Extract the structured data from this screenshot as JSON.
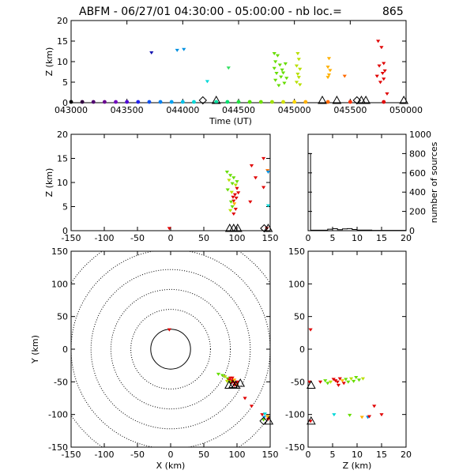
{
  "header": {
    "title": "ABFM - 06/27/01 04:30:00 - 05:00:00 - nb loc.=",
    "count": "865"
  },
  "chart_data": [
    {
      "id": "time-height",
      "type": "scatter",
      "xlabel": "Time (UT)",
      "ylabel": "Z (km)",
      "xlim": [
        0,
        30
      ],
      "ylim": [
        0,
        20
      ],
      "xtick_labels": [
        "043000",
        "043500",
        "044000",
        "044500",
        "045000",
        "045500",
        "050000"
      ],
      "yticks": [
        0,
        5,
        10,
        15,
        20
      ],
      "points": [
        {
          "x": 7.2,
          "y": 12.2,
          "c": "#1010b0"
        },
        {
          "x": 9.5,
          "y": 12.8,
          "c": "#0090e0"
        },
        {
          "x": 10.1,
          "y": 13.0,
          "c": "#0090e0"
        },
        {
          "x": 12.2,
          "y": 5.2,
          "c": "#00d8d8"
        },
        {
          "x": 14.1,
          "y": 8.5,
          "c": "#30e060"
        },
        {
          "x": 18.2,
          "y": 12.0,
          "c": "#66dd00"
        },
        {
          "x": 18.5,
          "y": 11.5,
          "c": "#66dd00"
        },
        {
          "x": 18.3,
          "y": 10.0,
          "c": "#66dd00"
        },
        {
          "x": 18.7,
          "y": 9.2,
          "c": "#66dd00"
        },
        {
          "x": 18.2,
          "y": 8.4,
          "c": "#66dd00"
        },
        {
          "x": 18.9,
          "y": 8.0,
          "c": "#66dd00"
        },
        {
          "x": 18.4,
          "y": 7.2,
          "c": "#66dd00"
        },
        {
          "x": 18.8,
          "y": 6.3,
          "c": "#66dd00"
        },
        {
          "x": 18.3,
          "y": 5.5,
          "c": "#66dd00"
        },
        {
          "x": 18.6,
          "y": 4.2,
          "c": "#66dd00"
        },
        {
          "x": 19.2,
          "y": 9.5,
          "c": "#66dd00"
        },
        {
          "x": 19.0,
          "y": 7.3,
          "c": "#66dd00"
        },
        {
          "x": 19.3,
          "y": 6.0,
          "c": "#66dd00"
        },
        {
          "x": 19.1,
          "y": 4.8,
          "c": "#66dd00"
        },
        {
          "x": 20.3,
          "y": 12.0,
          "c": "#b8e000"
        },
        {
          "x": 20.4,
          "y": 10.6,
          "c": "#b8e000"
        },
        {
          "x": 20.2,
          "y": 9.0,
          "c": "#b8e000"
        },
        {
          "x": 20.5,
          "y": 8.2,
          "c": "#b8e000"
        },
        {
          "x": 20.3,
          "y": 7.0,
          "c": "#b8e000"
        },
        {
          "x": 20.4,
          "y": 6.2,
          "c": "#b8e000"
        },
        {
          "x": 20.2,
          "y": 5.0,
          "c": "#b8e000"
        },
        {
          "x": 20.5,
          "y": 4.4,
          "c": "#b8e000"
        },
        {
          "x": 23.1,
          "y": 10.8,
          "c": "#ffb000"
        },
        {
          "x": 23.0,
          "y": 8.7,
          "c": "#ffb000"
        },
        {
          "x": 23.2,
          "y": 7.9,
          "c": "#ffb000"
        },
        {
          "x": 23.1,
          "y": 6.8,
          "c": "#ffb000"
        },
        {
          "x": 23.0,
          "y": 6.2,
          "c": "#ffb000"
        },
        {
          "x": 24.5,
          "y": 6.5,
          "c": "#ff6a00"
        },
        {
          "x": 27.5,
          "y": 15.0,
          "c": "#e00000"
        },
        {
          "x": 27.8,
          "y": 13.5,
          "c": "#e00000"
        },
        {
          "x": 28.0,
          "y": 9.6,
          "c": "#e00000"
        },
        {
          "x": 27.6,
          "y": 9.0,
          "c": "#e00000"
        },
        {
          "x": 28.1,
          "y": 7.8,
          "c": "#e00000"
        },
        {
          "x": 27.9,
          "y": 7.2,
          "c": "#e00000"
        },
        {
          "x": 27.4,
          "y": 6.5,
          "c": "#e00000"
        },
        {
          "x": 28.0,
          "y": 5.8,
          "c": "#e00000"
        },
        {
          "x": 27.7,
          "y": 5.0,
          "c": "#e00000"
        },
        {
          "x": 28.3,
          "y": 2.2,
          "c": "#e00000"
        }
      ],
      "time_ticks": [
        {
          "x": 0,
          "c": "#000000"
        },
        {
          "x": 1,
          "c": "#300040"
        },
        {
          "x": 2,
          "c": "#500070"
        },
        {
          "x": 3,
          "c": "#6a0090"
        },
        {
          "x": 4,
          "c": "#7000c0"
        },
        {
          "x": 5,
          "c": "#5000d8"
        },
        {
          "x": 6,
          "c": "#2020f0"
        },
        {
          "x": 7,
          "c": "#1050f0"
        },
        {
          "x": 8,
          "c": "#0080f0"
        },
        {
          "x": 9,
          "c": "#00a0f0"
        },
        {
          "x": 10,
          "c": "#00c0e8"
        },
        {
          "x": 11,
          "c": "#00d8d8"
        },
        {
          "x": 13,
          "c": "#00e0a0"
        },
        {
          "x": 14,
          "c": "#00e070"
        },
        {
          "x": 15,
          "c": "#20e040"
        },
        {
          "x": 16,
          "c": "#50e000"
        },
        {
          "x": 17,
          "c": "#70e000"
        },
        {
          "x": 18,
          "c": "#a0e000"
        },
        {
          "x": 19,
          "c": "#d0e000"
        },
        {
          "x": 20,
          "c": "#ffd800"
        },
        {
          "x": 21,
          "c": "#ffb000"
        },
        {
          "x": 23,
          "c": "#ff6a00"
        },
        {
          "x": 25,
          "c": "#ff3000"
        },
        {
          "x": 28,
          "c": "#e00000"
        }
      ],
      "stations": [
        {
          "x": 11.8,
          "shape": "diamond"
        },
        {
          "x": 13.0,
          "shape": "triangle"
        },
        {
          "x": 22.5,
          "shape": "triangle"
        },
        {
          "x": 23.8,
          "shape": "triangle"
        },
        {
          "x": 25.6,
          "shape": "diamond"
        },
        {
          "x": 26.0,
          "shape": "triangle"
        },
        {
          "x": 26.4,
          "shape": "triangle"
        },
        {
          "x": 29.8,
          "shape": "triangle"
        }
      ]
    },
    {
      "id": "x-z",
      "type": "scatter",
      "xlabel": "",
      "ylabel": "Z (km)",
      "xlim": [
        -150,
        150
      ],
      "ylim": [
        0,
        20
      ],
      "xticks": [
        -150,
        -100,
        -50,
        0,
        50,
        100,
        150
      ],
      "yticks": [
        0,
        5,
        10,
        15,
        20
      ],
      "points": [
        {
          "x": -2,
          "y": 0.5,
          "c": "#e00000"
        },
        {
          "x": 85,
          "y": 12.2,
          "c": "#66dd00"
        },
        {
          "x": 90,
          "y": 11.5,
          "c": "#66dd00"
        },
        {
          "x": 95,
          "y": 11.0,
          "c": "#66dd00"
        },
        {
          "x": 88,
          "y": 10.5,
          "c": "#b8e000"
        },
        {
          "x": 93,
          "y": 9.8,
          "c": "#66dd00"
        },
        {
          "x": 98,
          "y": 9.5,
          "c": "#b8e000"
        },
        {
          "x": 100,
          "y": 10.2,
          "c": "#66dd00"
        },
        {
          "x": 86,
          "y": 8.5,
          "c": "#66dd00"
        },
        {
          "x": 92,
          "y": 8.0,
          "c": "#b8e000"
        },
        {
          "x": 97,
          "y": 7.5,
          "c": "#e00000"
        },
        {
          "x": 94,
          "y": 7.0,
          "c": "#e00000"
        },
        {
          "x": 99,
          "y": 6.8,
          "c": "#e00000"
        },
        {
          "x": 95,
          "y": 6.2,
          "c": "#e00000"
        },
        {
          "x": 91,
          "y": 6.0,
          "c": "#66dd00"
        },
        {
          "x": 96,
          "y": 5.6,
          "c": "#ffb000"
        },
        {
          "x": 93,
          "y": 5.0,
          "c": "#66dd00"
        },
        {
          "x": 98,
          "y": 4.5,
          "c": "#e00000"
        },
        {
          "x": 90,
          "y": 4.2,
          "c": "#b8e000"
        },
        {
          "x": 95,
          "y": 3.5,
          "c": "#e00000"
        },
        {
          "x": 100,
          "y": 8.8,
          "c": "#e00000"
        },
        {
          "x": 102,
          "y": 7.9,
          "c": "#e00000"
        },
        {
          "x": 122,
          "y": 13.5,
          "c": "#e00000"
        },
        {
          "x": 128,
          "y": 11.0,
          "c": "#e00000"
        },
        {
          "x": 140,
          "y": 9.0,
          "c": "#e00000"
        },
        {
          "x": 140,
          "y": 15.0,
          "c": "#e00000"
        },
        {
          "x": 146,
          "y": 12.5,
          "c": "#ff6a00"
        },
        {
          "x": 147,
          "y": 12.2,
          "c": "#0090e0"
        },
        {
          "x": 147,
          "y": 5.2,
          "c": "#00d8d8"
        },
        {
          "x": 120,
          "y": 6.0,
          "c": "#e00000"
        },
        {
          "x": 145,
          "y": 0.5,
          "c": "#e00000"
        }
      ],
      "stations": [
        {
          "x": 89,
          "shape": "triangle"
        },
        {
          "x": 95,
          "shape": "triangle"
        },
        {
          "x": 101,
          "shape": "triangle"
        },
        {
          "x": 141,
          "shape": "diamond"
        },
        {
          "x": 147,
          "shape": "triangle"
        }
      ]
    },
    {
      "id": "histogram",
      "type": "bar",
      "xlabel": "",
      "ylabel": "number of sources",
      "xlim": [
        0,
        20
      ],
      "ylim": [
        0,
        1000
      ],
      "xticks": [
        0,
        5,
        10,
        15,
        20
      ],
      "yticks": [
        0,
        200,
        400,
        600,
        800,
        1000
      ],
      "values": [
        {
          "x0": 0,
          "x1": 0.5,
          "y": 800
        },
        {
          "x0": 0.5,
          "x1": 4,
          "y": 5
        },
        {
          "x0": 4,
          "x1": 5,
          "y": 15
        },
        {
          "x0": 5,
          "x1": 6,
          "y": 20
        },
        {
          "x0": 6,
          "x1": 7,
          "y": 10
        },
        {
          "x0": 7,
          "x1": 8,
          "y": 18
        },
        {
          "x0": 8,
          "x1": 9,
          "y": 22
        },
        {
          "x0": 9,
          "x1": 10,
          "y": 12
        },
        {
          "x0": 10,
          "x1": 13,
          "y": 6
        },
        {
          "x0": 13,
          "x1": 20,
          "y": 3
        }
      ]
    },
    {
      "id": "x-y-map",
      "type": "scatter",
      "xlabel": "X (km)",
      "ylabel": "Y (km)",
      "xlim": [
        -150,
        150
      ],
      "ylim": [
        -150,
        150
      ],
      "xticks": [
        -150,
        -100,
        -50,
        0,
        50,
        100,
        150
      ],
      "yticks": [
        -150,
        -100,
        -50,
        0,
        50,
        100,
        150
      ],
      "range_rings": [
        30,
        60,
        90,
        120,
        150,
        180
      ],
      "points": [
        {
          "x": -2,
          "y": 30,
          "c": "#e00000"
        },
        {
          "x": 72,
          "y": -38,
          "c": "#66dd00"
        },
        {
          "x": 78,
          "y": -40,
          "c": "#66dd00"
        },
        {
          "x": 82,
          "y": -42,
          "c": "#b8e000"
        },
        {
          "x": 86,
          "y": -45,
          "c": "#66dd00"
        },
        {
          "x": 88,
          "y": -47,
          "c": "#e00000"
        },
        {
          "x": 90,
          "y": -44,
          "c": "#e00000"
        },
        {
          "x": 92,
          "y": -48,
          "c": "#e00000"
        },
        {
          "x": 94,
          "y": -50,
          "c": "#e00000"
        },
        {
          "x": 91,
          "y": -52,
          "c": "#e00000"
        },
        {
          "x": 96,
          "y": -47,
          "c": "#ffb000"
        },
        {
          "x": 89,
          "y": -50,
          "c": "#66dd00"
        },
        {
          "x": 85,
          "y": -49,
          "c": "#b8e000"
        },
        {
          "x": 93,
          "y": -44,
          "c": "#e00000"
        },
        {
          "x": 97,
          "y": -52,
          "c": "#e00000"
        },
        {
          "x": 100,
          "y": -55,
          "c": "#ff6a00"
        },
        {
          "x": 101,
          "y": -50,
          "c": "#e00000"
        },
        {
          "x": 96,
          "y": -55,
          "c": "#e00000"
        },
        {
          "x": 112,
          "y": -75,
          "c": "#e00000"
        },
        {
          "x": 122,
          "y": -87,
          "c": "#e00000"
        },
        {
          "x": 138,
          "y": -100,
          "c": "#e00000"
        },
        {
          "x": 141,
          "y": -104,
          "c": "#0090e0"
        },
        {
          "x": 142,
          "y": -99,
          "c": "#00d8d8"
        },
        {
          "x": 146,
          "y": -103,
          "c": "#ffb000"
        },
        {
          "x": 147,
          "y": -107,
          "c": "#e00000"
        },
        {
          "x": 140,
          "y": -108,
          "c": "#66dd00"
        }
      ],
      "stations": [
        {
          "x": 88,
          "y": -55,
          "shape": "triangle"
        },
        {
          "x": 94,
          "y": -54,
          "shape": "triangle"
        },
        {
          "x": 98,
          "y": -55,
          "shape": "triangle"
        },
        {
          "x": 105,
          "y": -52,
          "shape": "triangle"
        },
        {
          "x": 140,
          "y": -110,
          "shape": "diamond"
        },
        {
          "x": 148,
          "y": -110,
          "shape": "triangle"
        }
      ]
    },
    {
      "id": "z-y",
      "type": "scatter",
      "xlabel": "Z (km)",
      "ylabel": "",
      "xlim": [
        0,
        20
      ],
      "ylim": [
        -150,
        150
      ],
      "xticks": [
        0,
        5,
        10,
        15,
        20
      ],
      "yticks": [
        -150,
        -100,
        -50,
        0,
        50,
        100,
        150
      ],
      "points": [
        {
          "x": 0.5,
          "y": 30,
          "c": "#e00000"
        },
        {
          "x": 0.3,
          "y": -50,
          "c": "#e00000"
        },
        {
          "x": 2.5,
          "y": -50,
          "c": "#e00000"
        },
        {
          "x": 3.5,
          "y": -48,
          "c": "#66dd00"
        },
        {
          "x": 4.0,
          "y": -52,
          "c": "#66dd00"
        },
        {
          "x": 4.6,
          "y": -50,
          "c": "#b8e000"
        },
        {
          "x": 5.2,
          "y": -46,
          "c": "#e00000"
        },
        {
          "x": 5.6,
          "y": -48,
          "c": "#e00000"
        },
        {
          "x": 6.0,
          "y": -50,
          "c": "#e00000"
        },
        {
          "x": 6.5,
          "y": -45,
          "c": "#e00000"
        },
        {
          "x": 7.0,
          "y": -48,
          "c": "#ffb000"
        },
        {
          "x": 7.3,
          "y": -52,
          "c": "#e00000"
        },
        {
          "x": 7.7,
          "y": -46,
          "c": "#66dd00"
        },
        {
          "x": 8.2,
          "y": -50,
          "c": "#66dd00"
        },
        {
          "x": 8.8,
          "y": -45,
          "c": "#b8e000"
        },
        {
          "x": 9.3,
          "y": -49,
          "c": "#66dd00"
        },
        {
          "x": 9.8,
          "y": -43,
          "c": "#66dd00"
        },
        {
          "x": 10.4,
          "y": -47,
          "c": "#66dd00"
        },
        {
          "x": 11.2,
          "y": -45,
          "c": "#b8e000"
        },
        {
          "x": 6.2,
          "y": -55,
          "c": "#e00000"
        },
        {
          "x": 5.3,
          "y": -100,
          "c": "#00d8d8"
        },
        {
          "x": 8.5,
          "y": -101,
          "c": "#66dd00"
        },
        {
          "x": 11.0,
          "y": -104,
          "c": "#ffb000"
        },
        {
          "x": 12.2,
          "y": -104,
          "c": "#0090e0"
        },
        {
          "x": 12.5,
          "y": -103,
          "c": "#e00000"
        },
        {
          "x": 13.5,
          "y": -87,
          "c": "#e00000"
        },
        {
          "x": 15.0,
          "y": -100,
          "c": "#e00000"
        },
        {
          "x": 0.5,
          "y": -110,
          "c": "#e00000"
        }
      ],
      "stations": [
        {
          "x": 0.3,
          "y": -55,
          "shape": "triangle"
        },
        {
          "x": 0.3,
          "y": -110,
          "shape": "triangle"
        }
      ]
    }
  ]
}
